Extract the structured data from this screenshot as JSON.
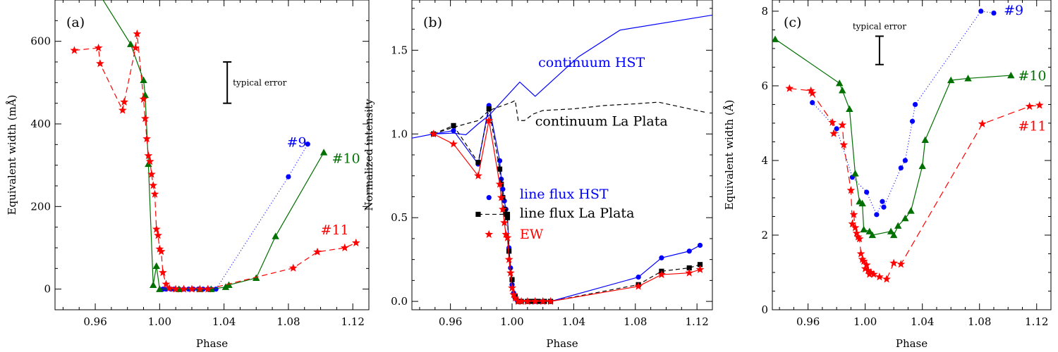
{
  "chart_data": [
    {
      "type": "line",
      "panel_label": "(a)",
      "xlabel": "Phase",
      "ylabel": "Equivalent width (mÅ)",
      "xlim": [
        0.935,
        1.13
      ],
      "ylim": [
        -50,
        700
      ],
      "xticks": [
        0.96,
        1.0,
        1.04,
        1.08,
        1.12
      ],
      "xticklabels": [
        "0.96",
        "1.00",
        "1.04",
        "1.08",
        "1.12"
      ],
      "yticks": [
        0,
        200,
        400,
        600
      ],
      "yticklabels": [
        "0",
        "200",
        "400",
        "600"
      ],
      "error_bar": {
        "label": "typical error",
        "x": 1.042,
        "y": 500,
        "half_height": 50
      },
      "series": [
        {
          "name": "#9",
          "color": "#0000ff",
          "marker": "circle",
          "dash": "1,3",
          "label_pos": [
            1.079,
            345
          ],
          "x": [
            1.002,
            1.004,
            1.007,
            1.009,
            1.012,
            1.015,
            1.018,
            1.021,
            1.024,
            1.027,
            1.03,
            1.032,
            1.035,
            1.08,
            1.092
          ],
          "y": [
            0,
            0,
            0,
            0,
            0,
            0,
            0,
            0,
            0,
            0,
            0,
            0,
            0,
            272,
            351
          ]
        },
        {
          "name": "#10",
          "color": "#007000",
          "marker": "triangle",
          "dash": "",
          "label_pos": [
            1.107,
            305
          ],
          "x": [
            0.952,
            0.982,
            0.99,
            0.991,
            0.993,
            0.996,
            0.998,
            1.0,
            1.012,
            1.025,
            1.032,
            1.041,
            1.043,
            1.06,
            1.072,
            1.102
          ],
          "y": [
            780,
            593,
            506,
            470,
            303,
            10,
            56,
            0,
            0,
            0,
            0,
            5,
            10,
            27,
            128,
            331
          ]
        },
        {
          "name": "#11",
          "color": "#ff0000",
          "marker": "star",
          "dash": "8,5",
          "label_pos": [
            1.1,
            132
          ],
          "x": [
            0.947,
            0.962,
            0.963,
            0.977,
            0.978,
            0.985,
            0.986,
            0.99,
            0.991,
            0.992,
            0.993,
            0.994,
            0.995,
            0.996,
            0.997,
            0.998,
            0.999,
            1.0,
            1.001,
            1.002,
            1.004,
            1.006,
            1.01,
            1.015,
            1.02,
            1.025,
            1.03,
            1.083,
            1.098,
            1.115,
            1.122
          ],
          "y": [
            578,
            584,
            546,
            433,
            453,
            584,
            618,
            460,
            413,
            364,
            323,
            309,
            278,
            251,
            230,
            145,
            130,
            97,
            91,
            40,
            12,
            2,
            0,
            0,
            0,
            0,
            0,
            51,
            90,
            100,
            112
          ]
        }
      ]
    },
    {
      "type": "line",
      "panel_label": "(b)",
      "xlabel": "Phase",
      "ylabel": "Normalized intensity",
      "xlim": [
        0.935,
        1.13
      ],
      "ylim": [
        -0.05,
        1.8
      ],
      "xticks": [
        0.96,
        1.0,
        1.04,
        1.08,
        1.12
      ],
      "xticklabels": [
        "0.96",
        "1.00",
        "1.04",
        "1.08",
        "1.12"
      ],
      "yticks": [
        0.0,
        0.5,
        1.0,
        1.5
      ],
      "yticklabels": [
        "0.0",
        "0.5",
        "1.0",
        "1.5"
      ],
      "series": [
        {
          "name": "continuum HST",
          "color": "#0000ff",
          "marker": "none",
          "dash": "",
          "label_pos": [
            1.017,
            1.4
          ],
          "x": [
            0.935,
            0.949,
            0.962,
            0.97,
            0.978,
            0.985,
            1.005,
            1.015,
            1.043,
            1.07,
            1.13
          ],
          "y": [
            0.975,
            1.0,
            1.005,
            0.995,
            1.06,
            1.11,
            1.31,
            1.225,
            1.46,
            1.62,
            1.71
          ]
        },
        {
          "name": "continuum La Plata",
          "color": "#000000",
          "marker": "none",
          "dash": "6,4",
          "label_pos": [
            1.015,
            1.05
          ],
          "x": [
            0.949,
            0.962,
            0.978,
            0.985,
            1.0,
            1.002,
            1.004,
            1.008,
            1.014,
            1.02,
            1.04,
            1.06,
            1.08,
            1.095,
            1.11,
            1.125
          ],
          "y": [
            1.0,
            1.04,
            1.08,
            1.14,
            1.19,
            1.2,
            1.08,
            1.08,
            1.12,
            1.14,
            1.15,
            1.17,
            1.18,
            1.19,
            1.16,
            1.13
          ]
        },
        {
          "name": "line flux HST",
          "color": "#0000ff",
          "marker": "circle",
          "dash": "",
          "label_pos": [
            1.005,
            0.615
          ],
          "legend_marker": [
            0.985,
            0.62
          ],
          "x": [
            0.949,
            0.962,
            0.978,
            0.985,
            0.992,
            0.993,
            0.994,
            0.995,
            0.996,
            0.997,
            0.998,
            0.999,
            1.0,
            1.001,
            1.002,
            1.003,
            1.005,
            1.01,
            1.015,
            1.02,
            1.025,
            1.082,
            1.097,
            1.115,
            1.122
          ],
          "y": [
            1.0,
            1.02,
            0.82,
            1.17,
            0.84,
            0.73,
            0.67,
            0.6,
            0.55,
            0.5,
            0.32,
            0.2,
            0.1,
            0.05,
            0.02,
            0.01,
            0,
            0,
            0,
            0,
            0,
            0.145,
            0.26,
            0.3,
            0.335
          ]
        },
        {
          "name": "line flux La Plata",
          "color": "#000000",
          "marker": "square",
          "dash": "6,4",
          "label_pos": [
            1.005,
            0.5
          ],
          "legend_marker": [
            0.978,
            0.52
          ],
          "legend_dash_to": [
            0.997,
            0.52
          ],
          "x": [
            0.949,
            0.962,
            0.978,
            0.985,
            0.992,
            0.993,
            0.994,
            0.995,
            0.996,
            0.997,
            0.998,
            1.0,
            1.002,
            1.004,
            1.006,
            1.01,
            1.013,
            1.017,
            1.021,
            1.025,
            1.082,
            1.097,
            1.115,
            1.122
          ],
          "y": [
            1.0,
            1.05,
            0.83,
            1.15,
            0.79,
            0.7,
            0.62,
            0.55,
            0.52,
            0.5,
            0.3,
            0.13,
            0.03,
            0,
            0,
            0,
            0,
            0,
            0,
            0,
            0.1,
            0.18,
            0.2,
            0.22
          ]
        },
        {
          "name": "EW",
          "color": "#ff0000",
          "marker": "star",
          "dash": "",
          "label_pos": [
            1.005,
            0.375
          ],
          "legend_marker": [
            0.985,
            0.4
          ],
          "x": [
            0.949,
            0.962,
            0.978,
            0.985,
            0.992,
            0.993,
            0.994,
            0.995,
            0.996,
            0.997,
            0.998,
            0.999,
            1.0,
            1.001,
            1.002,
            1.004,
            1.006,
            1.01,
            1.015,
            1.02,
            1.025,
            1.082,
            1.097,
            1.115,
            1.122
          ],
          "y": [
            1.0,
            0.94,
            0.75,
            1.08,
            0.7,
            0.62,
            0.55,
            0.47,
            0.4,
            0.38,
            0.25,
            0.17,
            0.08,
            0.04,
            0.02,
            0,
            0,
            0,
            0,
            0,
            0,
            0.09,
            0.16,
            0.17,
            0.19
          ]
        }
      ]
    },
    {
      "type": "line",
      "panel_label": "(c)",
      "xlabel": "Phase",
      "ylabel": "Equivalent width (Å)",
      "xlim": [
        0.935,
        1.13
      ],
      "ylim": [
        0,
        8.3
      ],
      "xticks": [
        0.96,
        1.0,
        1.04,
        1.08,
        1.12
      ],
      "xticklabels": [
        "0.96",
        "1.00",
        "1.04",
        "1.08",
        "1.12"
      ],
      "yticks": [
        0,
        2,
        4,
        6,
        8
      ],
      "yticklabels": [
        "0",
        "2",
        "4",
        "6",
        "8"
      ],
      "error_bar": {
        "label": "typical error",
        "x": 1.01,
        "y": 6.95,
        "half_height": 0.38
      },
      "series": [
        {
          "name": "#9",
          "color": "#0000ff",
          "marker": "circle",
          "dash": "1,3",
          "label_pos": [
            1.097,
            7.9
          ],
          "x": [
            0.963,
            0.98,
            0.991,
            1.001,
            1.008,
            1.012,
            1.013,
            1.025,
            1.028,
            1.033,
            1.035,
            1.081,
            1.09
          ],
          "y": [
            5.55,
            4.85,
            3.55,
            3.15,
            2.55,
            2.9,
            2.75,
            3.8,
            4.0,
            5.05,
            5.5,
            8.0,
            7.95
          ]
        },
        {
          "name": "#10",
          "color": "#007000",
          "marker": "triangle",
          "dash": "",
          "label_pos": [
            1.107,
            6.15
          ],
          "x": [
            0.937,
            0.982,
            0.984,
            0.989,
            0.993,
            0.996,
            0.998,
            0.999,
            1.003,
            1.005,
            1.018,
            1.02,
            1.023,
            1.028,
            1.032,
            1.04,
            1.042,
            1.06,
            1.072,
            1.102
          ],
          "y": [
            7.25,
            6.07,
            5.88,
            5.38,
            3.65,
            2.9,
            2.85,
            2.15,
            2.1,
            2.0,
            2.1,
            2.0,
            2.25,
            2.45,
            2.65,
            3.85,
            4.55,
            6.15,
            6.2,
            6.28
          ]
        },
        {
          "name": "#11",
          "color": "#ff0000",
          "marker": "star",
          "dash": "10,6",
          "label_pos": [
            1.107,
            4.8
          ],
          "x": [
            0.947,
            0.962,
            0.963,
            0.977,
            0.978,
            0.984,
            0.985,
            0.99,
            0.991,
            0.992,
            0.993,
            0.994,
            0.995,
            0.996,
            0.997,
            0.998,
            0.999,
            1.0,
            1.001,
            1.002,
            1.003,
            1.004,
            1.006,
            1.01,
            1.015,
            1.02,
            1.025,
            1.082,
            1.115,
            1.122
          ],
          "y": [
            5.93,
            5.87,
            5.8,
            5.02,
            4.72,
            4.95,
            4.42,
            3.2,
            2.3,
            2.55,
            2.2,
            2.05,
            1.95,
            1.9,
            1.5,
            1.35,
            1.3,
            1.1,
            1.2,
            1.05,
            0.95,
            1.0,
            0.95,
            0.88,
            0.82,
            1.25,
            1.22,
            4.98,
            5.45,
            5.48
          ]
        }
      ]
    }
  ]
}
